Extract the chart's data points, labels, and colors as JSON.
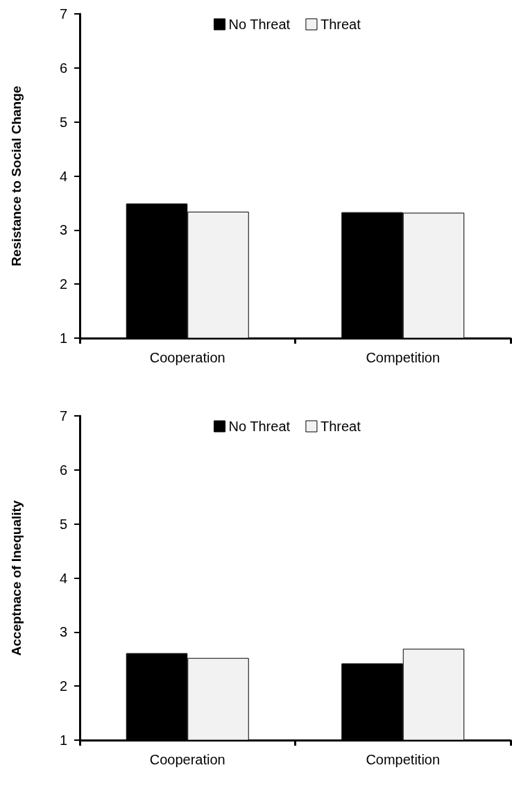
{
  "chart_data": [
    {
      "type": "bar",
      "ylabel": "Resistance to Social Change",
      "categories": [
        "Cooperation",
        "Competition"
      ],
      "series": [
        {
          "name": "No Threat",
          "color": "#000000",
          "values": [
            3.49,
            3.33
          ]
        },
        {
          "name": "Threat",
          "color": "#f2f2f2",
          "values": [
            3.34,
            3.32
          ]
        }
      ],
      "ylim": [
        1,
        7
      ],
      "yticks": [
        1,
        2,
        3,
        4,
        5,
        6,
        7
      ],
      "grid": false,
      "legend": "top"
    },
    {
      "type": "bar",
      "ylabel": "Acceptnace of Inequality",
      "categories": [
        "Cooperation",
        "Competition"
      ],
      "series": [
        {
          "name": "No Threat",
          "color": "#000000",
          "values": [
            2.61,
            2.42
          ]
        },
        {
          "name": "Threat",
          "color": "#f2f2f2",
          "values": [
            2.52,
            2.69
          ]
        }
      ],
      "ylim": [
        1,
        7
      ],
      "yticks": [
        1,
        2,
        3,
        4,
        5,
        6,
        7
      ],
      "grid": false,
      "legend": "top"
    }
  ]
}
